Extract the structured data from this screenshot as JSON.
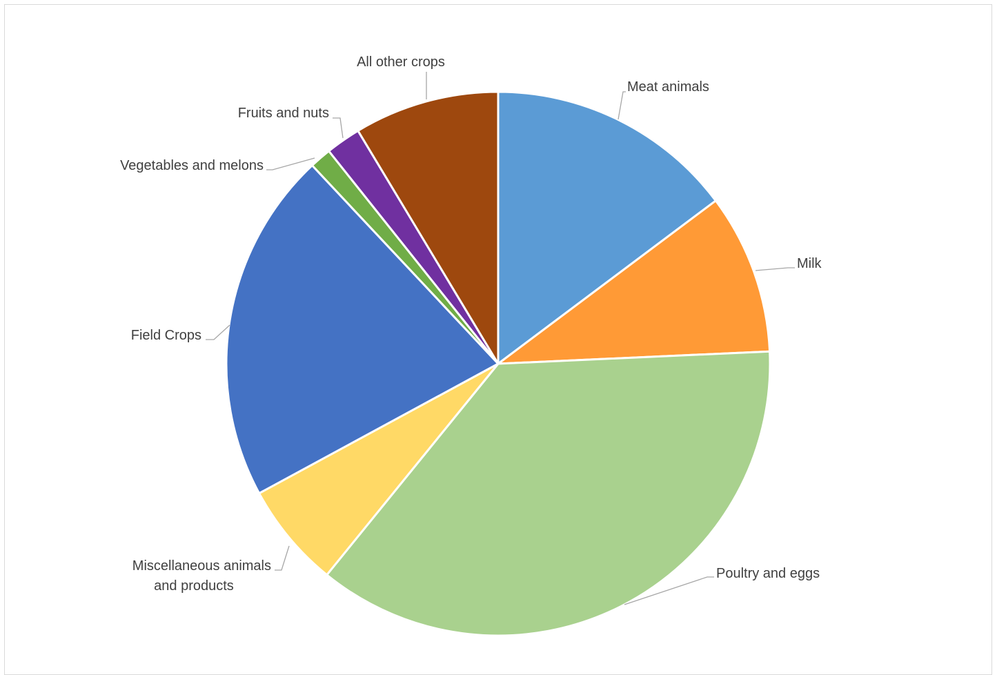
{
  "chart_data": {
    "type": "pie",
    "title": "",
    "start_angle_deg": 0,
    "direction": "clockwise",
    "legend": "none",
    "slices": [
      {
        "label": "Meat animals",
        "value": 14.9,
        "color": "#5b9bd5"
      },
      {
        "label": "Milk",
        "value": 9.6,
        "color": "#ff9a36"
      },
      {
        "label": "Poultry and eggs",
        "value": 36.9,
        "color": "#a9d18e"
      },
      {
        "label": "Miscellaneous animals and products",
        "value": 6.3,
        "color": "#ffd966"
      },
      {
        "label": "Field Crops",
        "value": 21.1,
        "color": "#4472c4"
      },
      {
        "label": "Vegetables and melons",
        "value": 1.3,
        "color": "#70ad47"
      },
      {
        "label": "Fruits and nuts",
        "value": 2.1,
        "color": "#7030a0"
      },
      {
        "label": "All other crops",
        "value": 8.7,
        "color": "#9e480e"
      }
    ]
  }
}
